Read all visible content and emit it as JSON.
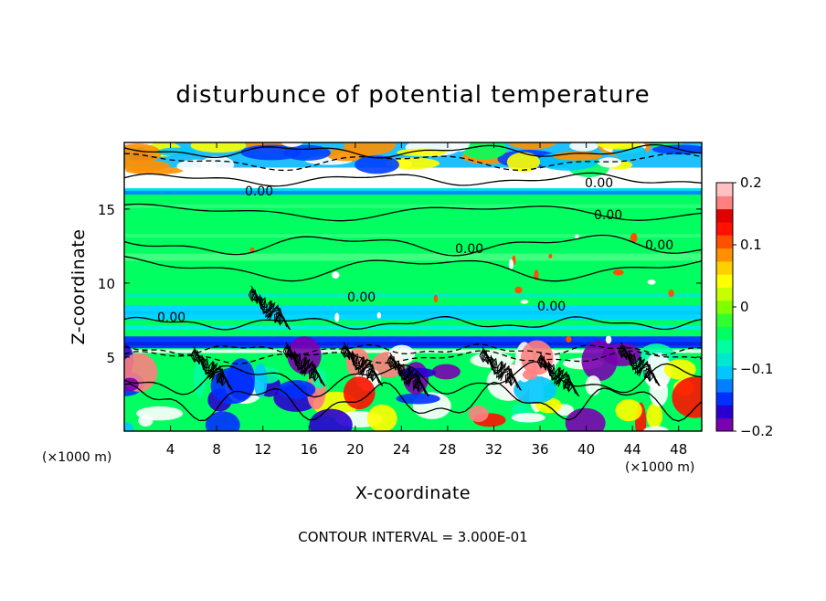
{
  "chart_data": {
    "type": "heatmap",
    "title": "disturbunce of potential temperature",
    "xlabel": "X-coordinate",
    "ylabel": "Z-coordinate",
    "x_unit": "(×1000 m)",
    "z_unit": "(×1000 m)",
    "xlim": [
      0,
      50
    ],
    "zlim": [
      0,
      19.5
    ],
    "x_ticks": [
      "4",
      "8",
      "12",
      "16",
      "20",
      "24",
      "28",
      "32",
      "36",
      "40",
      "44",
      "48"
    ],
    "z_ticks": [
      "5",
      "10",
      "15"
    ],
    "colorbar": {
      "range": [
        -0.2,
        0.2
      ],
      "tick_labels": [
        "0.2",
        "0.1",
        "0",
        "−0.1",
        "−0.2"
      ],
      "colors": [
        "#7a00b0",
        "#2a00d0",
        "#0030ff",
        "#0080ff",
        "#00c8ff",
        "#00e8d0",
        "#00ffa0",
        "#00ff60",
        "#30ff30",
        "#80ff00",
        "#c8ff00",
        "#ffff00",
        "#ffd000",
        "#ff9000",
        "#ff5000",
        "#ff1000",
        "#e00000",
        "#ff8080",
        "#ffc0c0"
      ]
    },
    "contour_labels": [
      "0.00",
      "0.00",
      "0.00",
      "0.00",
      "0.00",
      "0.00",
      "0.00",
      "0.00"
    ],
    "contour_interval": "CONTOUR INTERVAL = 3.000E-01",
    "z_bands": [
      {
        "z": [
          17.8,
          19.5
        ],
        "band": "mixed-top"
      },
      {
        "z": [
          16.4,
          17.8
        ],
        "band": "white"
      },
      {
        "z": [
          16.0,
          16.4
        ],
        "band": "cyan"
      },
      {
        "z": [
          12.0,
          16.0
        ],
        "band": "green"
      },
      {
        "z": [
          11.5,
          12.0
        ],
        "band": "light-green"
      },
      {
        "z": [
          8.5,
          11.5
        ],
        "band": "green"
      },
      {
        "z": [
          7.5,
          8.5
        ],
        "band": "cyan"
      },
      {
        "z": [
          6.4,
          7.5
        ],
        "band": "green"
      },
      {
        "z": [
          5.6,
          6.4
        ],
        "band": "blue"
      },
      {
        "z": [
          0,
          5.6
        ],
        "band": "mixed-bottom"
      }
    ]
  }
}
